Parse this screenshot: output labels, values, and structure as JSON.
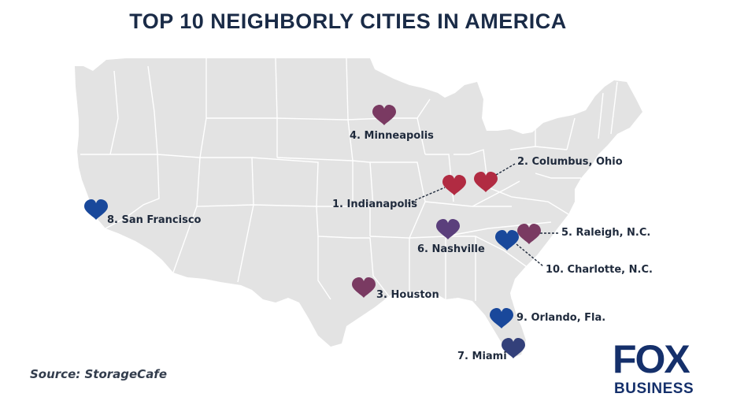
{
  "title": "TOP 10 NEIGHBORLY CITIES IN AMERICA",
  "source": "Source: StorageCafe",
  "logo": {
    "line1": "FOX",
    "line2": "BUSINESS"
  },
  "colors": {
    "land": "#e3e3e3",
    "borders": "#ffffff",
    "red": "#b12b42",
    "plum": "#7a3a62",
    "violet": "#5b3f7c",
    "blue": "#19489b",
    "navy": "#33407a",
    "text": "#1f2a3c"
  },
  "cities": [
    {
      "rank": 1,
      "label": "1. Indianapolis",
      "color": "red"
    },
    {
      "rank": 2,
      "label": "2. Columbus, Ohio",
      "color": "red"
    },
    {
      "rank": 3,
      "label": "3. Houston",
      "color": "plum"
    },
    {
      "rank": 4,
      "label": "4. Minneapolis",
      "color": "plum"
    },
    {
      "rank": 5,
      "label": "5. Raleigh, N.C.",
      "color": "plum"
    },
    {
      "rank": 6,
      "label": "6. Nashville",
      "color": "violet"
    },
    {
      "rank": 7,
      "label": "7. Miami",
      "color": "navy"
    },
    {
      "rank": 8,
      "label": "8. San Francisco",
      "color": "blue"
    },
    {
      "rank": 9,
      "label": "9. Orlando, Fla.",
      "color": "blue"
    },
    {
      "rank": 10,
      "label": "10. Charlotte, N.C.",
      "color": "blue"
    }
  ]
}
